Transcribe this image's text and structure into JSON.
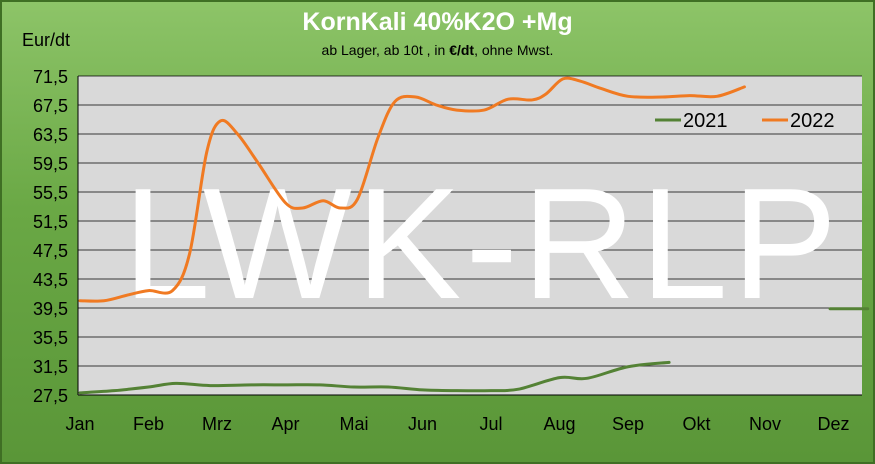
{
  "chart_data": {
    "type": "line",
    "title": "KornKali 40%K2O +Mg",
    "subtitle_prefix": "ab Lager, ab 10t ,  in ",
    "subtitle_unit": "€/dt",
    "subtitle_suffix": ", ohne Mwst.",
    "ylabel": "Eur/dt",
    "xlabel": "",
    "watermark": "LWK-RLP",
    "ylim": [
      27.5,
      71.5
    ],
    "yticks": [
      27.5,
      31.5,
      35.5,
      39.5,
      43.5,
      47.5,
      51.5,
      55.5,
      59.5,
      63.5,
      67.5,
      71.5
    ],
    "ytick_labels": [
      "27,5",
      "31,5",
      "35,5",
      "39,5",
      "43,5",
      "47,5",
      "51,5",
      "55,5",
      "59,5",
      "63,5",
      "67,5",
      "71,5"
    ],
    "categories": [
      "Jan",
      "Feb",
      "Mrz",
      "Apr",
      "Mai",
      "Jun",
      "Jul",
      "Aug",
      "Sep",
      "Okt",
      "Nov",
      "Dez"
    ],
    "grid": true,
    "legend_position": "top-right",
    "series": [
      {
        "name": "2021",
        "color": "#548235",
        "points": [
          [
            0,
            27.8
          ],
          [
            0.5,
            28.1
          ],
          [
            1,
            28.6
          ],
          [
            1.4,
            29.1
          ],
          [
            1.9,
            28.8
          ],
          [
            2.5,
            28.9
          ],
          [
            3,
            28.9
          ],
          [
            3.5,
            28.9
          ],
          [
            4,
            28.6
          ],
          [
            4.5,
            28.6
          ],
          [
            5,
            28.2
          ],
          [
            5.5,
            28.1
          ],
          [
            6,
            28.1
          ],
          [
            6.4,
            28.3
          ],
          [
            7,
            29.9
          ],
          [
            7.4,
            29.8
          ],
          [
            8,
            31.4
          ],
          [
            8.6,
            32.0
          ]
        ]
      },
      {
        "name": "2022",
        "color": "#f07a22",
        "points": [
          [
            0,
            40.5
          ],
          [
            0.35,
            40.5
          ],
          [
            0.7,
            41.3
          ],
          [
            1,
            41.9
          ],
          [
            1.35,
            41.9
          ],
          [
            1.6,
            47.0
          ],
          [
            1.85,
            61.0
          ],
          [
            2.05,
            65.3
          ],
          [
            2.3,
            63.5
          ],
          [
            2.6,
            59.5
          ],
          [
            3,
            54.0
          ],
          [
            3.25,
            53.3
          ],
          [
            3.55,
            54.3
          ],
          [
            3.8,
            53.3
          ],
          [
            4.05,
            54.5
          ],
          [
            4.35,
            63.0
          ],
          [
            4.6,
            68.0
          ],
          [
            4.9,
            68.6
          ],
          [
            5.2,
            67.5
          ],
          [
            5.5,
            66.8
          ],
          [
            5.9,
            66.8
          ],
          [
            6.25,
            68.3
          ],
          [
            6.6,
            68.2
          ],
          [
            6.8,
            69.0
          ],
          [
            7.05,
            71.1
          ],
          [
            7.3,
            70.8
          ],
          [
            7.6,
            69.8
          ],
          [
            8,
            68.7
          ],
          [
            8.5,
            68.6
          ],
          [
            8.9,
            68.8
          ],
          [
            9.3,
            68.7
          ],
          [
            9.7,
            70.0
          ]
        ]
      },
      {
        "name": "2021",
        "color": "#548235",
        "points": [
          [
            10.95,
            39.4
          ],
          [
            11.5,
            39.4
          ]
        ]
      }
    ]
  }
}
